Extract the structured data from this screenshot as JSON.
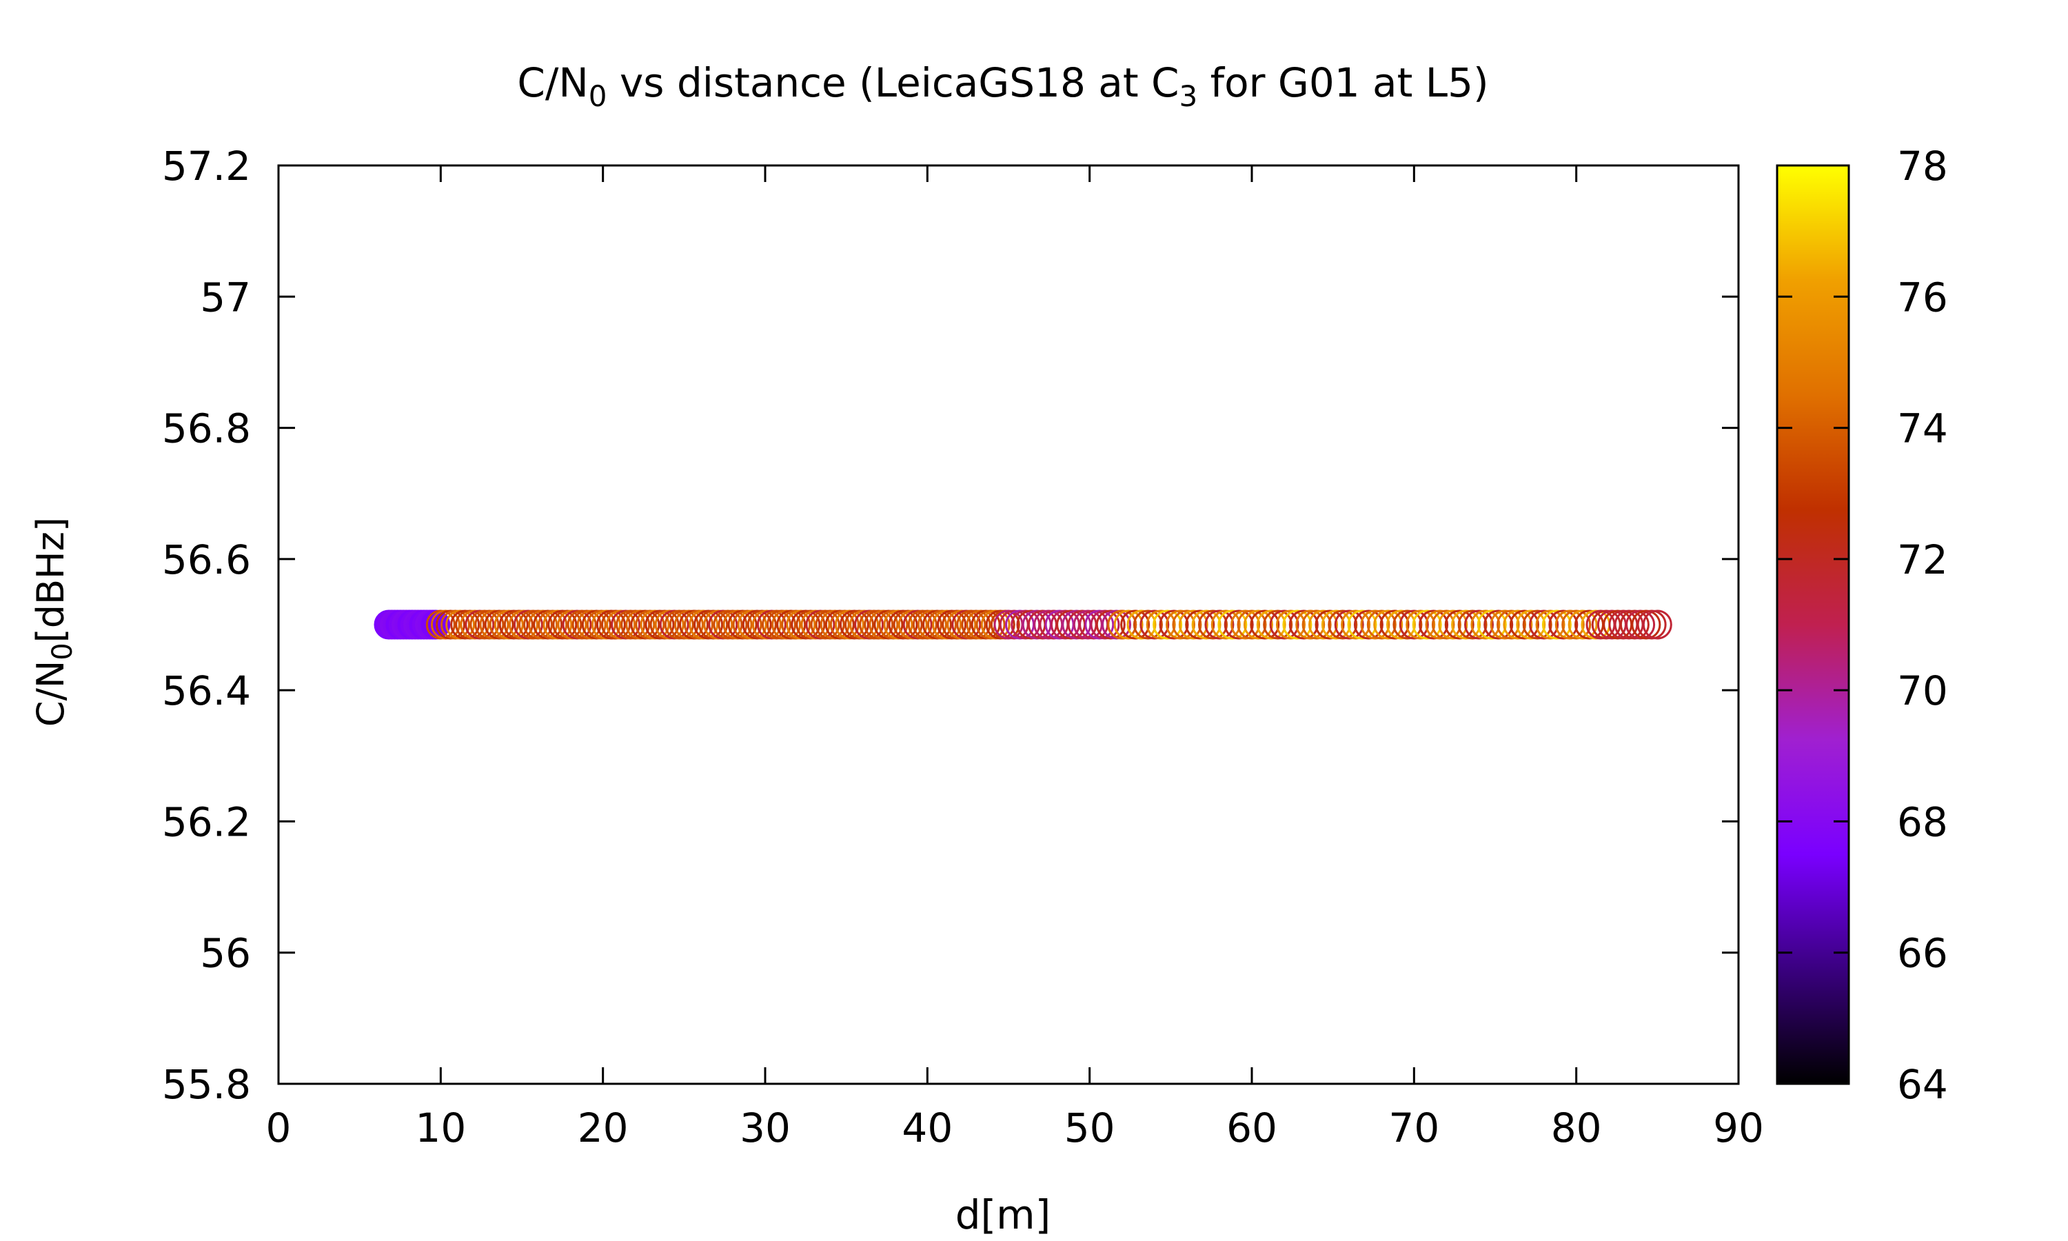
{
  "chart_data": {
    "type": "scatter",
    "title": {
      "prefix": "C/N",
      "sub": "0",
      "middle": " vs distance (LeicaGS18 at C",
      "sub2": "3",
      "suffix": " for G01 at L5)"
    },
    "xlabel": "d[m]",
    "ylabel": {
      "prefix": "C/N",
      "sub": "0",
      "suffix": "[dBHz]"
    },
    "xlim": [
      0,
      90
    ],
    "ylim": [
      55.8,
      57.2
    ],
    "x_ticks": [
      "0",
      "10",
      "20",
      "30",
      "40",
      "50",
      "60",
      "70",
      "80",
      "90"
    ],
    "y_ticks": [
      "55.8",
      "56",
      "56.2",
      "56.4",
      "56.6",
      "56.8",
      "57",
      "57.2"
    ],
    "colorbar": {
      "range": [
        64,
        78
      ],
      "ticks": [
        "64",
        "66",
        "68",
        "70",
        "72",
        "74",
        "76",
        "78"
      ],
      "palette": [
        "#000000",
        "#3a0080",
        "#7a00ff",
        "#a020d0",
        "#c02050",
        "#c03000",
        "#e07000",
        "#f0a000",
        "#ffff00"
      ]
    },
    "y_value": 56.5,
    "series_segments": [
      {
        "x_start": 6.8,
        "x_end": 9.8,
        "step": 0.18,
        "c_values": [
          67.6,
          67.8,
          68.0,
          67.9
        ]
      },
      {
        "x_start": 10.0,
        "x_end": 45.0,
        "step": 0.3,
        "c_values": [
          73.5,
          74.2,
          72.8,
          73.9,
          74.8,
          72.5,
          73.2,
          74.5,
          71.8,
          73.6
        ]
      },
      {
        "x_start": 45.0,
        "x_end": 52.0,
        "step": 0.35,
        "c_values": [
          70.6,
          71.2,
          69.8,
          70.9,
          72.0,
          70.3,
          71.5
        ]
      },
      {
        "x_start": 52.0,
        "x_end": 81.5,
        "step": 0.4,
        "c_values": [
          74.2,
          75.8,
          72.6,
          76.4,
          73.4,
          71.9,
          75.1,
          77.0,
          72.2,
          74.8
        ]
      },
      {
        "x_start": 81.5,
        "x_end": 85.2,
        "step": 0.35,
        "c_values": [
          71.6,
          72.0,
          71.4,
          72.4,
          71.8
        ]
      }
    ]
  }
}
